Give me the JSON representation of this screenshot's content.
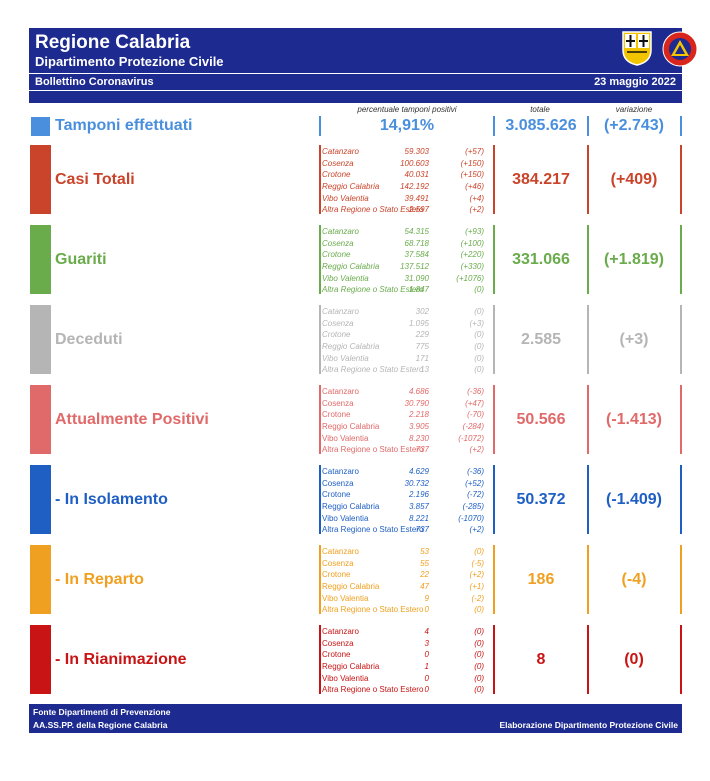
{
  "header": {
    "title": "Regione Calabria",
    "subtitle": "Dipartimento Protezione Civile",
    "bulletin": "Bollettino Coronavirus",
    "date": "23 maggio 2022",
    "logo_text": "PROTEZIONE CIVILE"
  },
  "columns": {
    "percent": "percentuale tamponi positivi",
    "total": "totale",
    "variation": "variazione"
  },
  "tamponi": {
    "label": "Tamponi effettuati",
    "percent": "14,91%",
    "total": "3.085.626",
    "variation": "(+2.743)",
    "color": "#4a8fde"
  },
  "sections": [
    {
      "key": "casi",
      "label": "Casi Totali",
      "color": "#c9442a",
      "total": "384.217",
      "variation": "(+409)",
      "italic": true,
      "rows": [
        {
          "name": "Catanzaro",
          "value": "59.303",
          "delta": "(+57)"
        },
        {
          "name": "Cosenza",
          "value": "100.603",
          "delta": "(+150)"
        },
        {
          "name": "Crotone",
          "value": "40.031",
          "delta": "(+150)"
        },
        {
          "name": "Reggio Calabria",
          "value": "142.192",
          "delta": "(+46)"
        },
        {
          "name": "Vibo Valentia",
          "value": "39.491",
          "delta": "(+4)"
        },
        {
          "name": "Altra Regione o Stato Estero",
          "value": "2.597",
          "delta": "(+2)"
        }
      ]
    },
    {
      "key": "guariti",
      "label": "Guariti",
      "color": "#6aab4c",
      "total": "331.066",
      "variation": "(+1.819)",
      "italic": true,
      "rows": [
        {
          "name": "Catanzaro",
          "value": "54.315",
          "delta": "(+93)"
        },
        {
          "name": "Cosenza",
          "value": "68.718",
          "delta": "(+100)"
        },
        {
          "name": "Crotone",
          "value": "37.584",
          "delta": "(+220)"
        },
        {
          "name": "Reggio Calabria",
          "value": "137.512",
          "delta": "(+330)"
        },
        {
          "name": "Vibo Valentia",
          "value": "31.090",
          "delta": "(+1076)"
        },
        {
          "name": "Altra Regione o Stato Estero",
          "value": "1.847",
          "delta": "(0)"
        }
      ]
    },
    {
      "key": "deceduti",
      "label": "Deceduti",
      "color": "#b5b5b5",
      "total": "2.585",
      "variation": "(+3)",
      "italic": true,
      "rows": [
        {
          "name": "Catanzaro",
          "value": "302",
          "delta": "(0)"
        },
        {
          "name": "Cosenza",
          "value": "1.095",
          "delta": "(+3)"
        },
        {
          "name": "Crotone",
          "value": "229",
          "delta": "(0)"
        },
        {
          "name": "Reggio Calabria",
          "value": "775",
          "delta": "(0)"
        },
        {
          "name": "Vibo Valentia",
          "value": "171",
          "delta": "(0)"
        },
        {
          "name": "Altra Regione o Stato Estero",
          "value": "13",
          "delta": "(0)"
        }
      ]
    },
    {
      "key": "positivi",
      "label": "Attualmente Positivi",
      "color": "#e06a6a",
      "total": "50.566",
      "variation": "(-1.413)",
      "italic": false,
      "rows": [
        {
          "name": "Catanzaro",
          "value": "4.686",
          "delta": "(-36)"
        },
        {
          "name": "Cosenza",
          "value": "30.790",
          "delta": "(+47)"
        },
        {
          "name": "Crotone",
          "value": "2.218",
          "delta": "(-70)"
        },
        {
          "name": "Reggio Calabria",
          "value": "3.905",
          "delta": "(-284)"
        },
        {
          "name": "Vibo Valentia",
          "value": "8.230",
          "delta": "(-1072)"
        },
        {
          "name": "Altra Regione o Stato Estero",
          "value": "737",
          "delta": "(+2)"
        }
      ]
    },
    {
      "key": "isolamento",
      "label": " - In Isolamento",
      "color": "#1f5fc4",
      "total": "50.372",
      "variation": "(-1.409)",
      "italic": false,
      "rows": [
        {
          "name": "Catanzaro",
          "value": "4.629",
          "delta": "(-36)"
        },
        {
          "name": "Cosenza",
          "value": "30.732",
          "delta": "(+52)"
        },
        {
          "name": "Crotone",
          "value": "2.196",
          "delta": "(-72)"
        },
        {
          "name": "Reggio Calabria",
          "value": "3.857",
          "delta": "(-285)"
        },
        {
          "name": "Vibo Valentia",
          "value": "8.221",
          "delta": "(-1070)"
        },
        {
          "name": "Altra Regione o Stato Estero",
          "value": "737",
          "delta": "(+2)"
        }
      ]
    },
    {
      "key": "reparto",
      "label": " - In Reparto",
      "color": "#f0a020",
      "total": "186",
      "variation": "(-4)",
      "italic": false,
      "rows": [
        {
          "name": "Catanzaro",
          "value": "53",
          "delta": "(0)"
        },
        {
          "name": "Cosenza",
          "value": "55",
          "delta": "(-5)"
        },
        {
          "name": "Crotone",
          "value": "22",
          "delta": "(+2)"
        },
        {
          "name": "Reggio Calabria",
          "value": "47",
          "delta": "(+1)"
        },
        {
          "name": "Vibo Valentia",
          "value": "9",
          "delta": "(-2)"
        },
        {
          "name": "Altra Regione o Stato Estero",
          "value": "0",
          "delta": "(0)"
        }
      ]
    },
    {
      "key": "rianimazione",
      "label": " - In Rianimazione",
      "color": "#c81414",
      "total": "8",
      "variation": "(0)",
      "italic": false,
      "rows": [
        {
          "name": "Catanzaro",
          "value": "4",
          "delta": "(0)"
        },
        {
          "name": "Cosenza",
          "value": "3",
          "delta": "(0)"
        },
        {
          "name": "Crotone",
          "value": "0",
          "delta": "(0)"
        },
        {
          "name": "Reggio Calabria",
          "value": "1",
          "delta": "(0)"
        },
        {
          "name": "Vibo Valentia",
          "value": "0",
          "delta": "(0)"
        },
        {
          "name": "Altra Regione o Stato Estero",
          "value": "0",
          "delta": "(0)"
        }
      ]
    }
  ],
  "footer": {
    "line1": "Fonte Dipartimenti di Prevenzione",
    "line2": "AA.SS.PP.  della Regione Calabria",
    "credit": "Elaborazione Dipartimento Protezione Civile"
  }
}
